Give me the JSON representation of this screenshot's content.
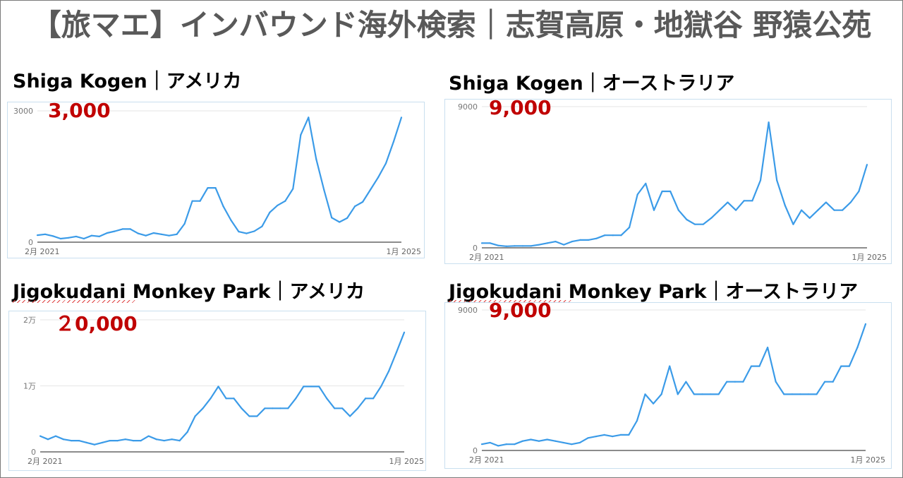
{
  "title": "【旅マエ】インバウンド海外検索｜志賀高原・地獄谷 野猿公苑",
  "chart_data": [
    {
      "type": "line",
      "title": "Shiga Kogen｜アメリカ",
      "highlight": "3,000",
      "x_start": "2月 2021",
      "x_end": "1月 2025",
      "y_ticks": [
        "0",
        "3000"
      ],
      "ylim": [
        0,
        3000
      ],
      "color": "#3b9be8",
      "values": [
        160,
        180,
        140,
        80,
        100,
        130,
        80,
        150,
        130,
        210,
        250,
        300,
        300,
        200,
        150,
        210,
        180,
        150,
        180,
        420,
        940,
        940,
        1240,
        1240,
        820,
        500,
        240,
        200,
        250,
        360,
        680,
        840,
        940,
        1220,
        2450,
        2850,
        1900,
        1200,
        560,
        460,
        550,
        820,
        920,
        1200,
        1480,
        1800,
        2300,
        2850
      ]
    },
    {
      "type": "line",
      "title": "Shiga Kogen｜オーストラリア",
      "highlight": "9,000",
      "x_start": "2月 2021",
      "x_end": "1月 2025",
      "y_ticks": [
        "0",
        "9000"
      ],
      "ylim": [
        0,
        9000
      ],
      "color": "#3b9be8",
      "values": [
        300,
        300,
        150,
        100,
        120,
        120,
        120,
        200,
        300,
        400,
        200,
        400,
        500,
        500,
        600,
        800,
        800,
        800,
        1300,
        3400,
        4100,
        2400,
        3600,
        3600,
        2400,
        1800,
        1500,
        1500,
        1900,
        2400,
        2900,
        2400,
        3000,
        3000,
        4300,
        8000,
        4300,
        2700,
        1500,
        2400,
        1900,
        2400,
        2900,
        2400,
        2400,
        2900,
        3600,
        5300
      ]
    },
    {
      "type": "line",
      "title": "Jigokudani Monkey Park｜アメリカ",
      "highlight": "２0,000",
      "x_start": "2月 2021",
      "x_end": "1月 2025",
      "y_ticks": [
        "0",
        "1万",
        "2万"
      ],
      "ylim": [
        0,
        20000
      ],
      "color": "#3b9be8",
      "values": [
        2400,
        1900,
        2400,
        1900,
        1700,
        1700,
        1400,
        1100,
        1400,
        1700,
        1700,
        1900,
        1700,
        1700,
        2400,
        1900,
        1700,
        1900,
        1700,
        3000,
        5400,
        6600,
        8100,
        9900,
        8100,
        8100,
        6600,
        5400,
        5400,
        6600,
        6600,
        6600,
        6600,
        8100,
        9900,
        9900,
        9900,
        8100,
        6600,
        6600,
        5400,
        6600,
        8100,
        8100,
        9900,
        12200,
        15100,
        18100
      ]
    },
    {
      "type": "line",
      "title": "Jigokudani Monkey Park｜オーストラリア",
      "highlight": "9,000",
      "x_start": "2月 2021",
      "x_end": "1月 2025",
      "y_ticks": [
        "0",
        "9000"
      ],
      "ylim": [
        0,
        9000
      ],
      "color": "#3b9be8",
      "values": [
        400,
        500,
        300,
        400,
        400,
        600,
        700,
        600,
        700,
        600,
        500,
        400,
        500,
        800,
        900,
        1000,
        900,
        1000,
        1000,
        1900,
        3600,
        3000,
        3600,
        5400,
        3600,
        4400,
        3600,
        3600,
        3600,
        3600,
        4400,
        4400,
        4400,
        5400,
        5400,
        6600,
        4400,
        3600,
        3600,
        3600,
        3600,
        3600,
        4400,
        4400,
        5400,
        5400,
        6600,
        8100
      ]
    }
  ]
}
